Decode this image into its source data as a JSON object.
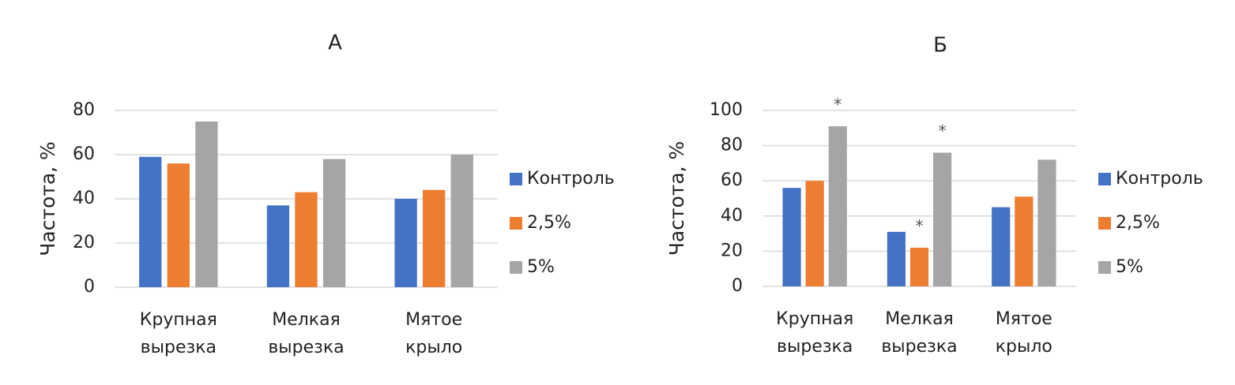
{
  "chart_data": [
    {
      "type": "bar",
      "title": "А",
      "y_label": "Частота, %",
      "categories": [
        [
          "Крупная",
          "вырезка"
        ],
        [
          "Мелкая",
          "вырезка"
        ],
        [
          "Мятое",
          "крыло"
        ]
      ],
      "series": [
        {
          "name": "Контроль",
          "color": "#4472c4",
          "values": [
            59,
            37,
            40
          ]
        },
        {
          "name": "2,5%",
          "color": "#ed7d31",
          "values": [
            56,
            43,
            44
          ]
        },
        {
          "name": "5%",
          "color": "#a5a5a5",
          "values": [
            75,
            58,
            60
          ]
        }
      ],
      "ylim": [
        0,
        80
      ],
      "yticks": [
        0,
        20,
        40,
        60,
        80
      ],
      "grid": true,
      "legend": "right"
    },
    {
      "type": "bar",
      "title": "Б",
      "y_label": "Частота, %",
      "categories": [
        [
          "Крупная",
          "вырезка"
        ],
        [
          "Мелкая",
          "вырезка"
        ],
        [
          "Мятое",
          "крыло"
        ]
      ],
      "series": [
        {
          "name": "Контроль",
          "color": "#4472c4",
          "values": [
            56,
            31,
            45
          ]
        },
        {
          "name": "2,5%",
          "color": "#ed7d31",
          "values": [
            60,
            22,
            51
          ],
          "annotations": [
            null,
            "*",
            null
          ]
        },
        {
          "name": "5%",
          "color": "#a5a5a5",
          "values": [
            91,
            76,
            72
          ],
          "annotations": [
            "*",
            "*",
            null
          ]
        }
      ],
      "ylim": [
        0,
        100
      ],
      "yticks": [
        0,
        20,
        40,
        60,
        80,
        100
      ],
      "grid": true,
      "legend": "right"
    }
  ]
}
